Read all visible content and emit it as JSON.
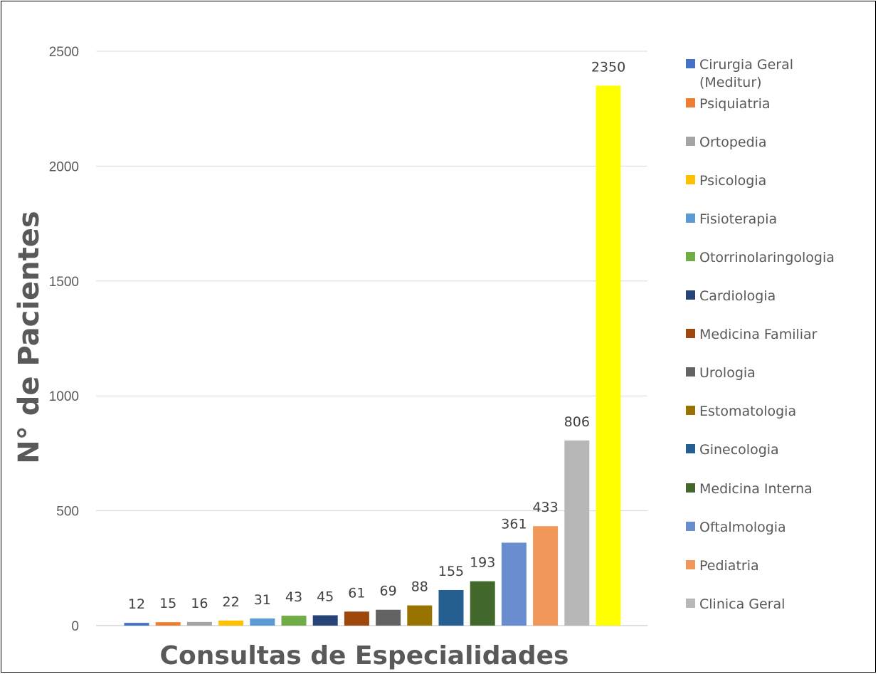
{
  "chart_data": {
    "type": "bar",
    "title": "",
    "xlabel": "Consultas de Especialidades",
    "ylabel": "N° de Pacientes",
    "ylim": [
      0,
      2500
    ],
    "yticks": [
      0,
      500,
      1000,
      1500,
      2000,
      2500
    ],
    "grid": true,
    "legend_position": "right",
    "series": [
      {
        "name": "Cirurgia Geral (Meditur)",
        "value": 12,
        "color": "#4472C4"
      },
      {
        "name": "Psiquiatria",
        "value": 15,
        "color": "#ED7D31"
      },
      {
        "name": "Ortopedia",
        "value": 16,
        "color": "#A5A5A5"
      },
      {
        "name": "Psicologia",
        "value": 22,
        "color": "#FFC000"
      },
      {
        "name": "Fisioterapia",
        "value": 31,
        "color": "#5B9BD5"
      },
      {
        "name": "Otorrinolaringologia",
        "value": 43,
        "color": "#70AD47"
      },
      {
        "name": "Cardiologia",
        "value": 45,
        "color": "#264478"
      },
      {
        "name": "Medicina Familiar",
        "value": 61,
        "color": "#9E480E"
      },
      {
        "name": "Urologia",
        "value": 69,
        "color": "#636363"
      },
      {
        "name": "Estomatologia",
        "value": 88,
        "color": "#997300"
      },
      {
        "name": "Ginecologia",
        "value": 155,
        "color": "#255E91"
      },
      {
        "name": "Medicina Interna",
        "value": 193,
        "color": "#43682B"
      },
      {
        "name": "Oftalmologia",
        "value": 361,
        "color": "#698ED0"
      },
      {
        "name": "Pediatria",
        "value": 433,
        "color": "#F1975A"
      },
      {
        "name": "Clinica Geral",
        "value": 806,
        "color": "#B7B7B7"
      },
      {
        "name": "",
        "value": 2350,
        "color": "#FFFF00"
      }
    ]
  }
}
